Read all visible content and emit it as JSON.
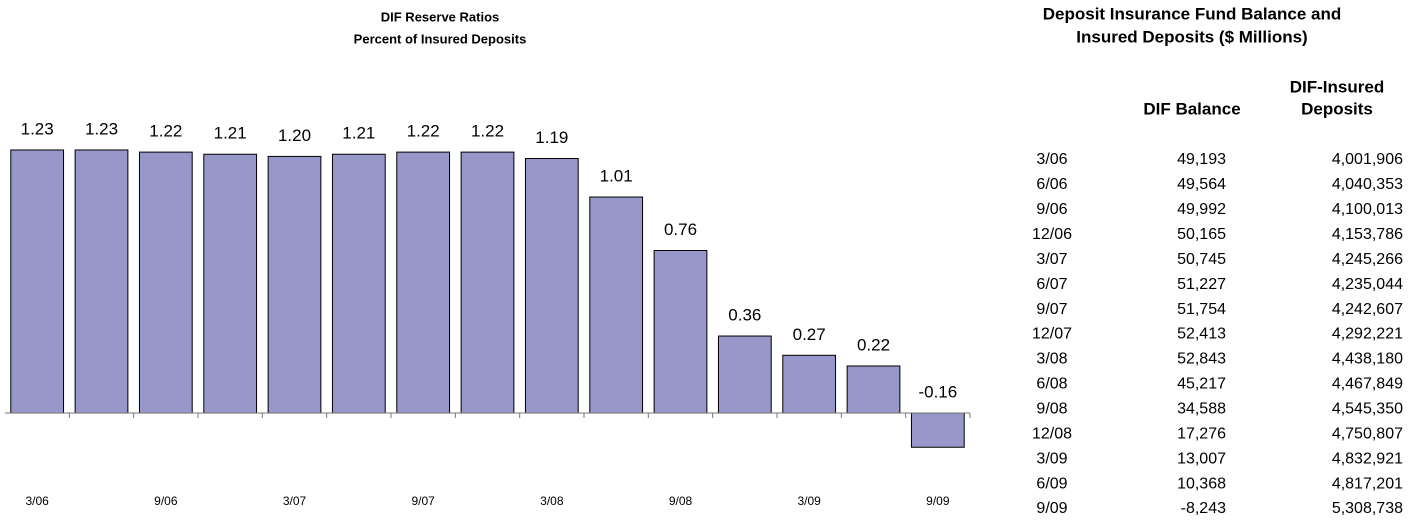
{
  "chart_data": {
    "type": "bar",
    "title": "DIF Reserve Ratios",
    "subtitle": "Percent of Insured Deposits",
    "categories": [
      "3/06",
      null,
      "9/06",
      null,
      "3/07",
      null,
      "9/07",
      null,
      "3/08",
      null,
      "9/08",
      null,
      "3/09",
      null,
      "9/09"
    ],
    "values": [
      1.23,
      1.23,
      1.22,
      1.21,
      1.2,
      1.21,
      1.22,
      1.22,
      1.19,
      1.01,
      0.76,
      0.36,
      0.27,
      0.22,
      -0.16
    ],
    "value_labels": [
      "1.23",
      "1.23",
      "1.22",
      "1.21",
      "1.20",
      "1.21",
      "1.22",
      "1.22",
      "1.19",
      "1.01",
      "0.76",
      "0.36",
      "0.27",
      "0.22",
      "-0.16"
    ],
    "color": "#9797c9",
    "ylim": [
      -0.25,
      1.3
    ]
  },
  "table": {
    "title": [
      "Deposit Insurance Fund Balance and",
      "Insured Deposits ($ Millions)"
    ],
    "columns": [
      [
        "DIF Balance"
      ],
      [
        "DIF-Insured",
        "Deposits"
      ]
    ],
    "rows": [
      [
        "3/06",
        "49,193",
        "4,001,906"
      ],
      [
        "6/06",
        "49,564",
        "4,040,353"
      ],
      [
        "9/06",
        "49,992",
        "4,100,013"
      ],
      [
        "12/06",
        "50,165",
        "4,153,786"
      ],
      [
        "3/07",
        "50,745",
        "4,245,266"
      ],
      [
        "6/07",
        "51,227",
        "4,235,044"
      ],
      [
        "9/07",
        "51,754",
        "4,242,607"
      ],
      [
        "12/07",
        "52,413",
        "4,292,221"
      ],
      [
        "3/08",
        "52,843",
        "4,438,180"
      ],
      [
        "6/08",
        "45,217",
        "4,467,849"
      ],
      [
        "9/08",
        "34,588",
        "4,545,350"
      ],
      [
        "12/08",
        "17,276",
        "4,750,807"
      ],
      [
        "3/09",
        "13,007",
        "4,832,921"
      ],
      [
        "6/09",
        "10,368",
        "4,817,201"
      ],
      [
        "9/09",
        "-8,243",
        "5,308,738"
      ]
    ]
  }
}
